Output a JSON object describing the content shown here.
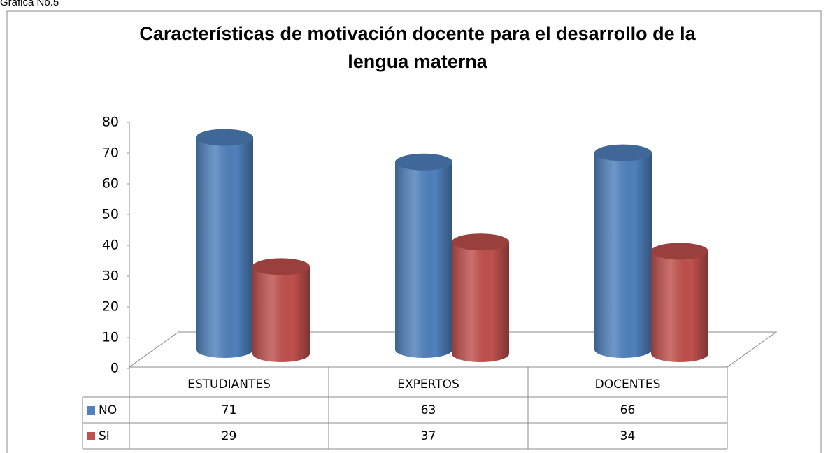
{
  "chart_data": {
    "type": "bar3d",
    "caption": "Gráfica No.5",
    "title": "Características de motivación docente para el desarrollo de la lengua materna",
    "categories": [
      "ESTUDIANTES",
      "EXPERTOS",
      "DOCENTES"
    ],
    "series": [
      {
        "name": "NO",
        "color": "#4f81bd",
        "values": [
          71,
          63,
          66
        ]
      },
      {
        "name": "SI",
        "color": "#c0504d",
        "values": [
          29,
          37,
          34
        ]
      }
    ],
    "ylim": [
      0,
      80
    ],
    "yticks": [
      0,
      10,
      20,
      30,
      40,
      50,
      60,
      70,
      80
    ],
    "grid": false,
    "data_table": true
  }
}
